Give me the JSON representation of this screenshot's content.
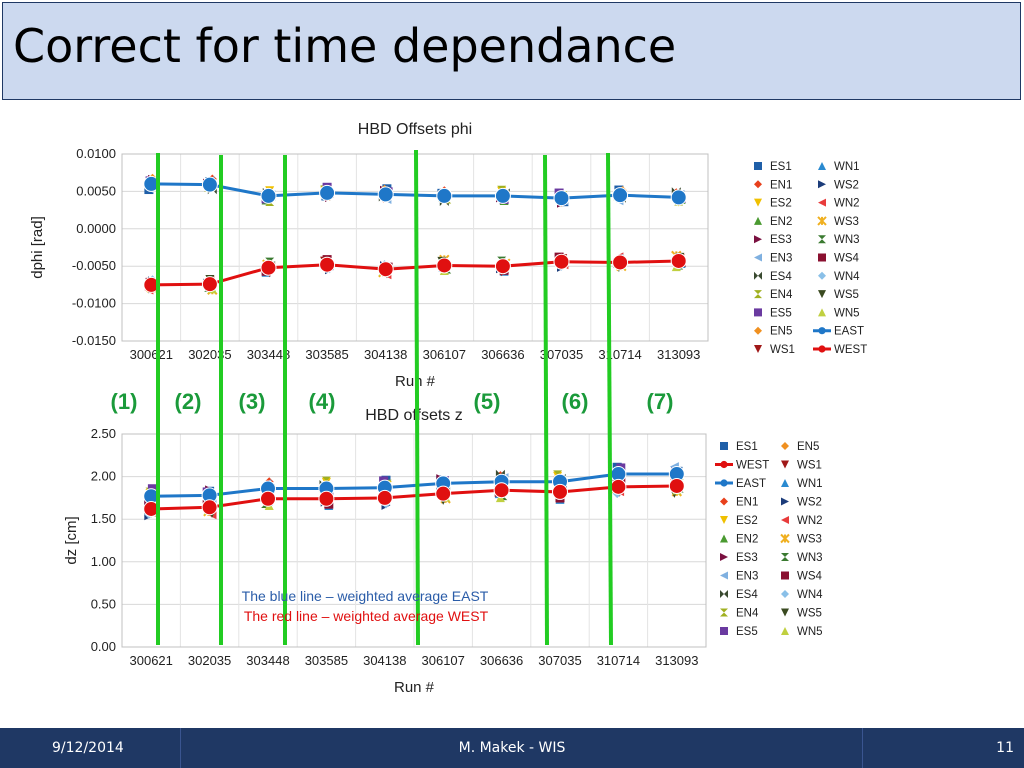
{
  "slide": {
    "title": "Correct for time dependance",
    "footer": {
      "date": "9/12/2014",
      "author": "M. Makek - WIS",
      "page": "11"
    },
    "period_labels": [
      "(1)",
      "(2)",
      "(3)",
      "(4)",
      "(5)",
      "(6)",
      "(7)"
    ],
    "notes": [
      "The blue line – weighted average EAST",
      "The red line  – weighted average WEST"
    ],
    "colors": {
      "east": "#1f77c8",
      "west": "#e01010",
      "divider": "#22cc22",
      "period_label": "#1a9a3a",
      "footer_bg": "#1f3864",
      "title_bg": "#ccd9ef"
    }
  },
  "chart_data": [
    {
      "type": "line",
      "title": "HBD Offsets phi",
      "xlabel": "Run #",
      "ylabel": "dphi [rad]",
      "ylim": [
        -0.015,
        0.01
      ],
      "yticks": [
        "0.0100",
        "0.0050",
        "0.0000",
        "-0.0050",
        "-0.0100",
        "-0.0150"
      ],
      "categories": [
        "300621",
        "302035",
        "303448",
        "303585",
        "304138",
        "306107",
        "306636",
        "307035",
        "310714",
        "313093"
      ],
      "grid": true,
      "legend_position": "right",
      "series": [
        {
          "name": "EAST",
          "color": "#1f77c8",
          "marker": "circle",
          "values": [
            0.006,
            0.0059,
            0.0044,
            0.0048,
            0.0046,
            0.0044,
            0.0044,
            0.0041,
            0.0045,
            0.0042
          ]
        },
        {
          "name": "WEST",
          "color": "#e01010",
          "marker": "circle",
          "values": [
            -0.0075,
            -0.0074,
            -0.0052,
            -0.0048,
            -0.0054,
            -0.0049,
            -0.005,
            -0.0044,
            -0.0045,
            -0.0043
          ]
        }
      ],
      "legend": [
        {
          "name": "ES1",
          "color": "#1f5fa8",
          "shape": "square"
        },
        {
          "name": "WN1",
          "color": "#2a8ad0",
          "shape": "triangle"
        },
        {
          "name": "EN1",
          "color": "#e8401c",
          "shape": "diamond"
        },
        {
          "name": "WS2",
          "color": "#1c3c7a",
          "shape": "tri-right"
        },
        {
          "name": "ES2",
          "color": "#f0c000",
          "shape": "tri-down"
        },
        {
          "name": "WN2",
          "color": "#e83c3c",
          "shape": "tri-left"
        },
        {
          "name": "EN2",
          "color": "#4a9a30",
          "shape": "triangle"
        },
        {
          "name": "WS3",
          "color": "#f0b020",
          "shape": "star"
        },
        {
          "name": "ES3",
          "color": "#7a1040",
          "shape": "tri-right"
        },
        {
          "name": "WN3",
          "color": "#3a7a30",
          "shape": "hourglass"
        },
        {
          "name": "EN3",
          "color": "#7fb0e0",
          "shape": "tri-left"
        },
        {
          "name": "WS4",
          "color": "#8a1030",
          "shape": "square"
        },
        {
          "name": "ES4",
          "color": "#3a4a30",
          "shape": "bowtie"
        },
        {
          "name": "WN4",
          "color": "#8ac0e8",
          "shape": "diamond"
        },
        {
          "name": "EN4",
          "color": "#a0b020",
          "shape": "hourglass"
        },
        {
          "name": "WS5",
          "color": "#3a4a20",
          "shape": "tri-down"
        },
        {
          "name": "ES5",
          "color": "#6a3aa0",
          "shape": "square"
        },
        {
          "name": "WN5",
          "color": "#c0d040",
          "shape": "triangle"
        },
        {
          "name": "EN5",
          "color": "#f09020",
          "shape": "diamond"
        },
        {
          "name": "EAST",
          "color": "#1f77c8",
          "shape": "line-circle"
        },
        {
          "name": "WS1",
          "color": "#a01818",
          "shape": "tri-down"
        },
        {
          "name": "WEST",
          "color": "#e01010",
          "shape": "line-circle"
        }
      ]
    },
    {
      "type": "line",
      "title": "HBD offsets z",
      "xlabel": "Run #",
      "ylabel": "dz [cm]",
      "ylim": [
        0,
        2.5
      ],
      "yticks": [
        "2.50",
        "2.00",
        "1.50",
        "1.00",
        "0.50",
        "0.00"
      ],
      "categories": [
        "300621",
        "302035",
        "303448",
        "303585",
        "304138",
        "306107",
        "306636",
        "307035",
        "310714",
        "313093"
      ],
      "grid": true,
      "legend_position": "right",
      "series": [
        {
          "name": "EAST",
          "color": "#1f77c8",
          "marker": "circle",
          "values": [
            1.77,
            1.78,
            1.86,
            1.86,
            1.87,
            1.92,
            1.94,
            1.94,
            2.03,
            2.03
          ]
        },
        {
          "name": "WEST",
          "color": "#e01010",
          "marker": "circle",
          "values": [
            1.62,
            1.64,
            1.74,
            1.74,
            1.75,
            1.8,
            1.84,
            1.82,
            1.88,
            1.89
          ]
        }
      ],
      "legend": [
        {
          "name": "ES1",
          "color": "#1f5fa8",
          "shape": "square"
        },
        {
          "name": "EN5",
          "color": "#f09020",
          "shape": "diamond"
        },
        {
          "name": "WEST",
          "color": "#e01010",
          "shape": "line-circle"
        },
        {
          "name": "WS1",
          "color": "#a01818",
          "shape": "tri-down"
        },
        {
          "name": "EAST",
          "color": "#1f77c8",
          "shape": "line-circle"
        },
        {
          "name": "WN1",
          "color": "#2a8ad0",
          "shape": "triangle"
        },
        {
          "name": "EN1",
          "color": "#e8401c",
          "shape": "diamond"
        },
        {
          "name": "WS2",
          "color": "#1c3c7a",
          "shape": "tri-right"
        },
        {
          "name": "ES2",
          "color": "#f0c000",
          "shape": "tri-down"
        },
        {
          "name": "WN2",
          "color": "#e83c3c",
          "shape": "tri-left"
        },
        {
          "name": "EN2",
          "color": "#4a9a30",
          "shape": "triangle"
        },
        {
          "name": "WS3",
          "color": "#f0b020",
          "shape": "star"
        },
        {
          "name": "ES3",
          "color": "#7a1040",
          "shape": "tri-right"
        },
        {
          "name": "WN3",
          "color": "#3a7a30",
          "shape": "hourglass"
        },
        {
          "name": "EN3",
          "color": "#7fb0e0",
          "shape": "tri-left"
        },
        {
          "name": "WS4",
          "color": "#8a1030",
          "shape": "square"
        },
        {
          "name": "ES4",
          "color": "#3a4a30",
          "shape": "bowtie"
        },
        {
          "name": "WN4",
          "color": "#8ac0e8",
          "shape": "diamond"
        },
        {
          "name": "EN4",
          "color": "#a0b020",
          "shape": "hourglass"
        },
        {
          "name": "WS5",
          "color": "#3a4a20",
          "shape": "tri-down"
        },
        {
          "name": "ES5",
          "color": "#6a3aa0",
          "shape": "square"
        },
        {
          "name": "WN5",
          "color": "#c0d040",
          "shape": "triangle"
        }
      ]
    }
  ]
}
